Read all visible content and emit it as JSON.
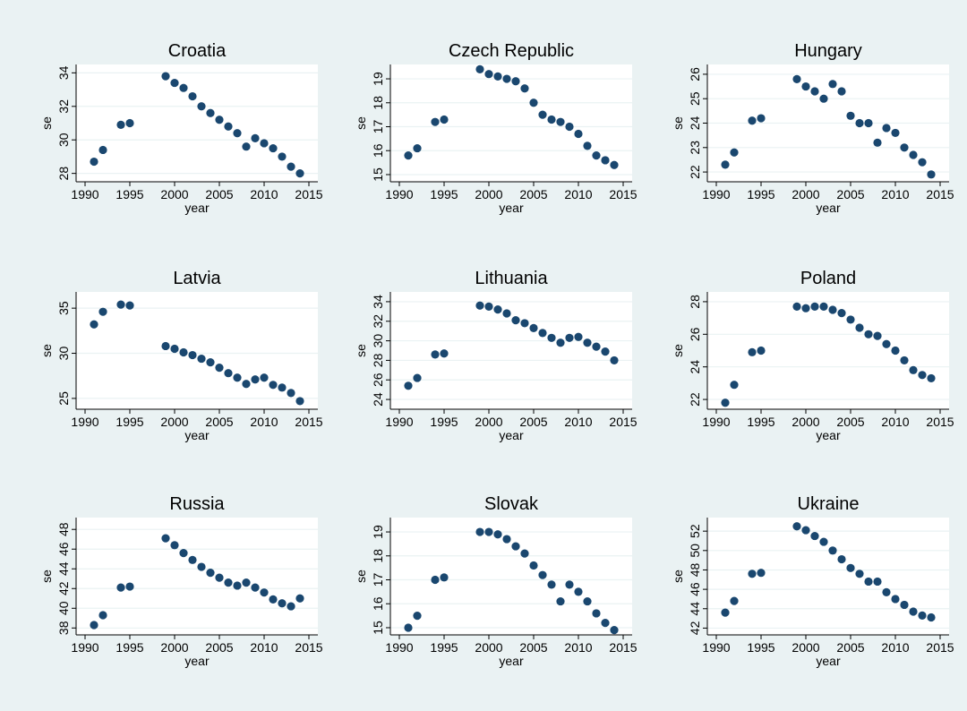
{
  "style": {
    "outer_bg": "#eaf2f3",
    "panel_bg": "#ffffff",
    "marker": "#1a476f",
    "grid": "#eaf2f3",
    "text": "#000000"
  },
  "chart_data": [
    {
      "type": "scatter",
      "title": "Croatia",
      "xlabel": "year",
      "ylabel": "se",
      "xlim": [
        1989,
        2016
      ],
      "ylim": [
        27.5,
        34.5
      ],
      "xticks": [
        1990,
        1995,
        2000,
        2005,
        2010,
        2015
      ],
      "yticks": [
        28,
        30,
        32,
        34
      ],
      "ytick_labels": [
        "28",
        "30",
        "32",
        "34"
      ],
      "x": [
        1991,
        1992,
        1994,
        1995,
        1999,
        2000,
        2001,
        2002,
        2003,
        2004,
        2005,
        2006,
        2007,
        2008,
        2009,
        2010,
        2011,
        2012,
        2013,
        2014
      ],
      "y": [
        28.7,
        29.4,
        30.9,
        31.0,
        33.8,
        33.4,
        33.1,
        32.6,
        32.0,
        31.6,
        31.2,
        30.8,
        30.4,
        29.6,
        30.1,
        29.8,
        29.5,
        29.0,
        28.4,
        28.0
      ]
    },
    {
      "type": "scatter",
      "title": "Czech Republic",
      "xlabel": "year",
      "ylabel": "se",
      "xlim": [
        1989,
        2016
      ],
      "ylim": [
        14.7,
        19.6
      ],
      "xticks": [
        1990,
        1995,
        2000,
        2005,
        2010,
        2015
      ],
      "yticks": [
        15,
        16,
        17,
        18,
        19
      ],
      "ytick_labels": [
        "15",
        "16",
        "17",
        "18",
        "19"
      ],
      "x": [
        1991,
        1992,
        1994,
        1995,
        1999,
        2000,
        2001,
        2002,
        2003,
        2004,
        2005,
        2006,
        2007,
        2008,
        2009,
        2010,
        2011,
        2012,
        2013,
        2014
      ],
      "y": [
        15.8,
        16.1,
        17.2,
        17.3,
        19.4,
        19.2,
        19.1,
        19.0,
        18.9,
        18.6,
        18.0,
        17.5,
        17.3,
        17.2,
        17.0,
        16.7,
        16.2,
        15.8,
        15.6,
        15.4
      ]
    },
    {
      "type": "scatter",
      "title": "Hungary",
      "xlabel": "year",
      "ylabel": "se",
      "xlim": [
        1989,
        2016
      ],
      "ylim": [
        21.6,
        26.4
      ],
      "xticks": [
        1990,
        1995,
        2000,
        2005,
        2010,
        2015
      ],
      "yticks": [
        22,
        23,
        24,
        25,
        26
      ],
      "ytick_labels": [
        "22",
        "23",
        "24",
        "25",
        "26"
      ],
      "x": [
        1991,
        1992,
        1994,
        1995,
        1999,
        2000,
        2001,
        2002,
        2003,
        2004,
        2005,
        2006,
        2007,
        2008,
        2009,
        2010,
        2011,
        2012,
        2013,
        2014
      ],
      "y": [
        22.3,
        22.8,
        24.1,
        24.2,
        25.8,
        25.5,
        25.3,
        25.0,
        25.6,
        25.3,
        24.3,
        24.0,
        24.0,
        23.2,
        23.8,
        23.6,
        23.0,
        22.7,
        22.4,
        21.9
      ]
    },
    {
      "type": "scatter",
      "title": "Latvia",
      "xlabel": "year",
      "ylabel": "se",
      "xlim": [
        1989,
        2016
      ],
      "ylim": [
        23.8,
        36.8
      ],
      "xticks": [
        1990,
        1995,
        2000,
        2005,
        2010,
        2015
      ],
      "yticks": [
        25,
        30,
        35
      ],
      "ytick_labels": [
        "25",
        "30",
        "35"
      ],
      "x": [
        1991,
        1992,
        1994,
        1995,
        1999,
        2000,
        2001,
        2002,
        2003,
        2004,
        2005,
        2006,
        2007,
        2008,
        2009,
        2010,
        2011,
        2012,
        2013,
        2014
      ],
      "y": [
        33.2,
        34.6,
        35.4,
        35.3,
        30.8,
        30.5,
        30.1,
        29.8,
        29.4,
        29.0,
        28.4,
        27.8,
        27.3,
        26.6,
        27.1,
        27.3,
        26.5,
        26.2,
        25.6,
        24.7
      ]
    },
    {
      "type": "scatter",
      "title": "Lithuania",
      "xlabel": "year",
      "ylabel": "se",
      "xlim": [
        1989,
        2016
      ],
      "ylim": [
        23,
        35
      ],
      "xticks": [
        1990,
        1995,
        2000,
        2005,
        2010,
        2015
      ],
      "yticks": [
        24,
        26,
        28,
        30,
        32,
        34
      ],
      "ytick_labels": [
        "24",
        "26",
        "28",
        "30",
        "32",
        "34"
      ],
      "x": [
        1991,
        1992,
        1994,
        1995,
        1999,
        2000,
        2001,
        2002,
        2003,
        2004,
        2005,
        2006,
        2007,
        2008,
        2009,
        2010,
        2011,
        2012,
        2013,
        2014
      ],
      "y": [
        25.4,
        26.2,
        28.6,
        28.7,
        33.6,
        33.5,
        33.2,
        32.8,
        32.1,
        31.8,
        31.3,
        30.8,
        30.3,
        29.8,
        30.3,
        30.4,
        29.8,
        29.4,
        28.9,
        28.0
      ]
    },
    {
      "type": "scatter",
      "title": "Poland",
      "xlabel": "year",
      "ylabel": "se",
      "xlim": [
        1989,
        2016
      ],
      "ylim": [
        21.4,
        28.6
      ],
      "xticks": [
        1990,
        1995,
        2000,
        2005,
        2010,
        2015
      ],
      "yticks": [
        22,
        24,
        26,
        28
      ],
      "ytick_labels": [
        "22",
        "24",
        "26",
        "28"
      ],
      "x": [
        1991,
        1992,
        1994,
        1995,
        1999,
        2000,
        2001,
        2002,
        2003,
        2004,
        2005,
        2006,
        2007,
        2008,
        2009,
        2010,
        2011,
        2012,
        2013,
        2014
      ],
      "y": [
        21.8,
        22.9,
        24.9,
        25.0,
        27.7,
        27.6,
        27.7,
        27.7,
        27.5,
        27.3,
        26.9,
        26.4,
        26.0,
        25.9,
        25.4,
        25.0,
        24.4,
        23.8,
        23.5,
        23.3
      ]
    },
    {
      "type": "scatter",
      "title": "Russia",
      "xlabel": "year",
      "ylabel": "se",
      "xlim": [
        1989,
        2016
      ],
      "ylim": [
        37.3,
        49.2
      ],
      "xticks": [
        1990,
        1995,
        2000,
        2005,
        2010,
        2015
      ],
      "yticks": [
        38,
        40,
        42,
        44,
        46,
        48
      ],
      "ytick_labels": [
        "38",
        "40",
        "42",
        "44",
        "46",
        "48"
      ],
      "x": [
        1991,
        1992,
        1994,
        1995,
        1999,
        2000,
        2001,
        2002,
        2003,
        2004,
        2005,
        2006,
        2007,
        2008,
        2009,
        2010,
        2011,
        2012,
        2013,
        2014
      ],
      "y": [
        38.3,
        39.3,
        42.1,
        42.2,
        47.1,
        46.4,
        45.6,
        44.9,
        44.2,
        43.6,
        43.1,
        42.6,
        42.3,
        42.6,
        42.1,
        41.6,
        40.9,
        40.5,
        40.2,
        41.0
      ]
    },
    {
      "type": "scatter",
      "title": "Slovak",
      "xlabel": "year",
      "ylabel": "se",
      "xlim": [
        1989,
        2016
      ],
      "ylim": [
        14.7,
        19.6
      ],
      "xticks": [
        1990,
        1995,
        2000,
        2005,
        2010,
        2015
      ],
      "yticks": [
        15,
        16,
        17,
        18,
        19
      ],
      "ytick_labels": [
        "15",
        "16",
        "17",
        "18",
        "19"
      ],
      "x": [
        1991,
        1992,
        1994,
        1995,
        1999,
        2000,
        2001,
        2002,
        2003,
        2004,
        2005,
        2006,
        2007,
        2008,
        2009,
        2010,
        2011,
        2012,
        2013,
        2014
      ],
      "y": [
        15.0,
        15.5,
        17.0,
        17.1,
        19.0,
        19.0,
        18.9,
        18.7,
        18.4,
        18.1,
        17.6,
        17.2,
        16.8,
        16.1,
        16.8,
        16.5,
        16.1,
        15.6,
        15.2,
        14.9
      ]
    },
    {
      "type": "scatter",
      "title": "Ukraine",
      "xlabel": "year",
      "ylabel": "se",
      "xlim": [
        1989,
        2016
      ],
      "ylim": [
        41.3,
        53.4
      ],
      "xticks": [
        1990,
        1995,
        2000,
        2005,
        2010,
        2015
      ],
      "yticks": [
        42,
        44,
        46,
        48,
        50,
        52
      ],
      "ytick_labels": [
        "42",
        "44",
        "46",
        "48",
        "50",
        "52"
      ],
      "x": [
        1991,
        1992,
        1994,
        1995,
        1999,
        2000,
        2001,
        2002,
        2003,
        2004,
        2005,
        2006,
        2007,
        2008,
        2009,
        2010,
        2011,
        2012,
        2013,
        2014
      ],
      "y": [
        43.6,
        44.8,
        47.6,
        47.7,
        52.5,
        52.1,
        51.5,
        50.9,
        50.0,
        49.1,
        48.2,
        47.6,
        46.8,
        46.8,
        45.7,
        45.0,
        44.4,
        43.7,
        43.3,
        43.1
      ]
    }
  ]
}
